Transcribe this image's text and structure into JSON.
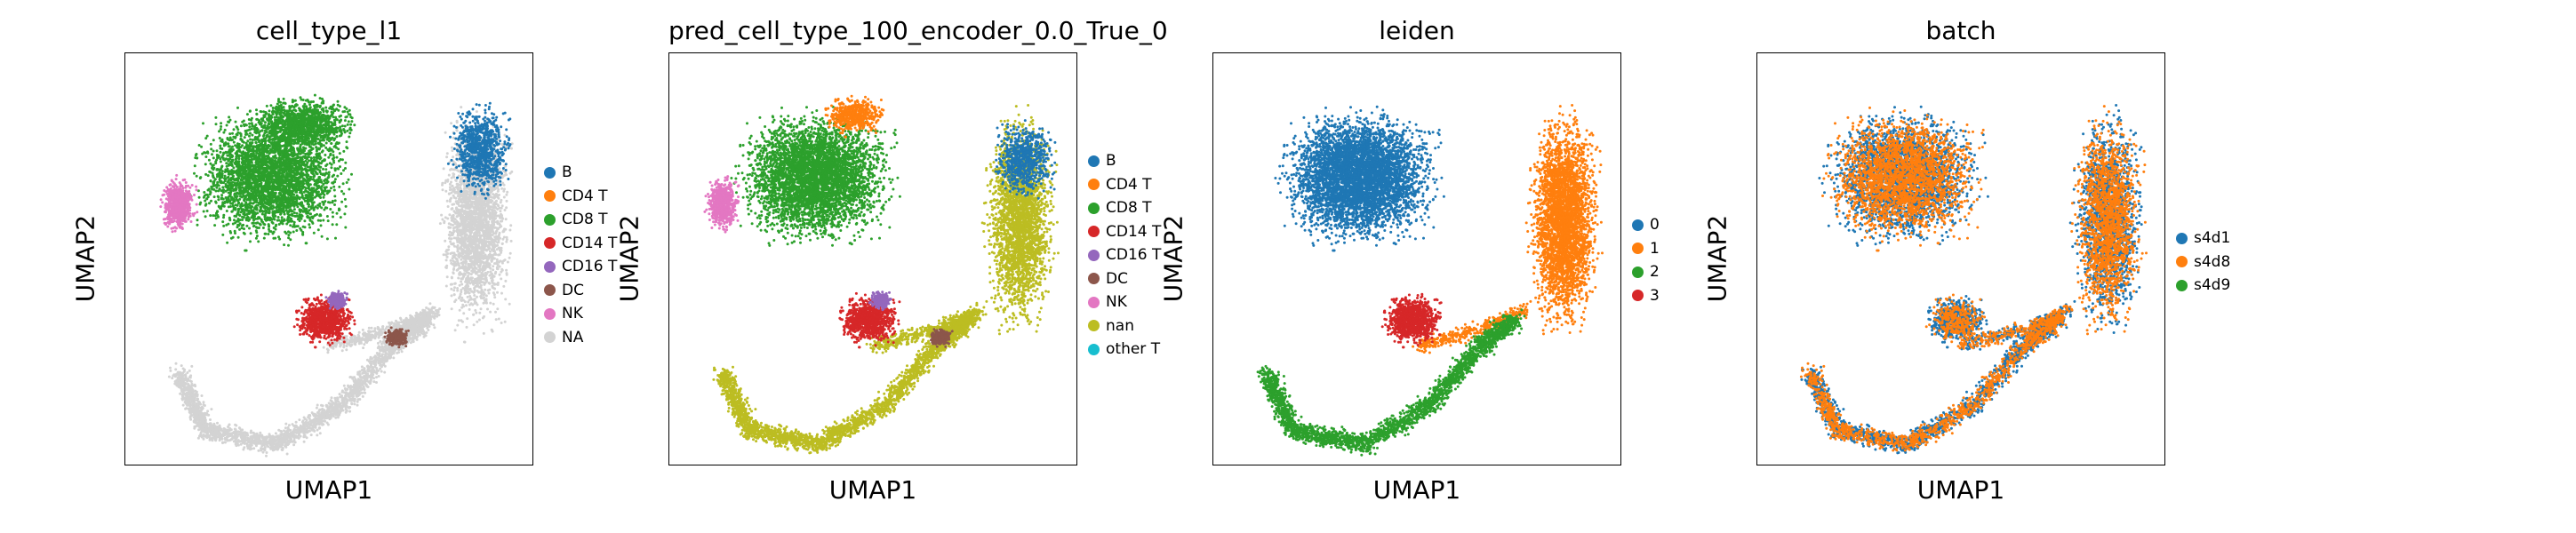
{
  "chart_data": [
    {
      "type": "scatter",
      "title": "cell_type_l1",
      "xlabel": "UMAP1",
      "ylabel": "UMAP2",
      "legend_position": "right",
      "categories": [
        "B",
        "CD4 T",
        "CD8 T",
        "CD14 T",
        "CD16 T",
        "DC",
        "NK",
        "NA"
      ],
      "colors": [
        "#1f77b4",
        "#ff7f0e",
        "#2ca02c",
        "#d62728",
        "#9467bd",
        "#8c564b",
        "#e377c2",
        "#d3d3d3"
      ]
    },
    {
      "type": "scatter",
      "title": "pred_cell_type_100_encoder_0.0_True_0",
      "xlabel": "UMAP1",
      "ylabel": "UMAP2",
      "legend_position": "right",
      "categories": [
        "B",
        "CD4 T",
        "CD8 T",
        "CD14 T",
        "CD16 T",
        "DC",
        "NK",
        "nan",
        "other T"
      ],
      "colors": [
        "#1f77b4",
        "#ff7f0e",
        "#2ca02c",
        "#d62728",
        "#9467bd",
        "#8c564b",
        "#e377c2",
        "#bcbd22",
        "#17becf"
      ]
    },
    {
      "type": "scatter",
      "title": "leiden",
      "xlabel": "UMAP1",
      "ylabel": "UMAP2",
      "legend_position": "right",
      "categories": [
        "0",
        "1",
        "2",
        "3"
      ],
      "colors": [
        "#1f77b4",
        "#ff7f0e",
        "#2ca02c",
        "#d62728"
      ]
    },
    {
      "type": "scatter",
      "title": "batch",
      "xlabel": "UMAP1",
      "ylabel": "UMAP2",
      "legend_position": "right",
      "categories": [
        "s4d1",
        "s4d8",
        "s4d9"
      ],
      "colors": [
        "#1f77b4",
        "#ff7f0e",
        "#2ca02c"
      ]
    }
  ]
}
